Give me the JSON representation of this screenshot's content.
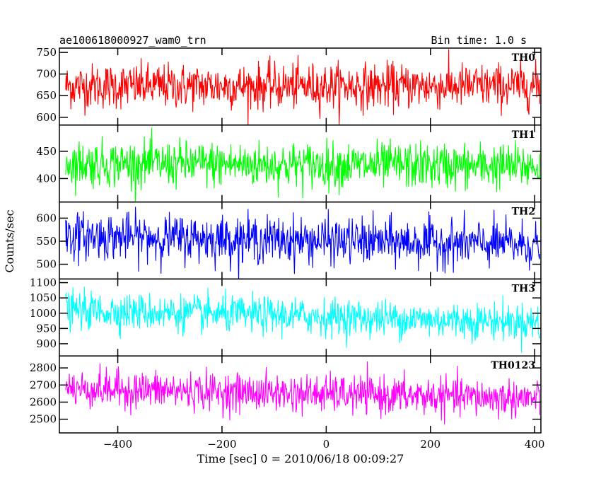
{
  "chart_data": {
    "type": "line",
    "title_left": "ae100618000927_wam0_trn",
    "title_right": "Bin time: 1.0 s",
    "xlabel": "Time [sec] 0 = 2010/06/18 00:09:27",
    "ylabel": "Counts/sec",
    "xlim": [
      -512,
      412
    ],
    "x_ticks": [
      -400,
      -200,
      0,
      200,
      400
    ],
    "x_tick_labels": [
      "−400",
      "−200",
      "0",
      "200",
      "400"
    ],
    "x_range": [
      -500,
      410
    ],
    "bin_time": 1.0,
    "grid": false,
    "panels": [
      {
        "name": "TH0",
        "color": "#ff0000",
        "ylim": [
          582,
          760
        ],
        "y_ticks": [
          600,
          650,
          700,
          750
        ],
        "y_tick_labels": [
          "600",
          "650",
          "700",
          "750"
        ],
        "mean_start": 672,
        "mean_end": 672,
        "noise": 26
      },
      {
        "name": "TH1",
        "color": "#00ff00",
        "ylim": [
          357,
          498
        ],
        "y_ticks": [
          400,
          450
        ],
        "y_tick_labels": [
          "400",
          "450"
        ],
        "mean_start": 428,
        "mean_end": 422,
        "noise": 21
      },
      {
        "name": "TH2",
        "color": "#0000ff",
        "ylim": [
          468,
          635
        ],
        "y_ticks": [
          500,
          550,
          600
        ],
        "y_tick_labels": [
          "500",
          "550",
          "600"
        ],
        "mean_start": 562,
        "mean_end": 542,
        "noise": 25
      },
      {
        "name": "TH3",
        "color": "#00ffff",
        "ylim": [
          860,
          1112
        ],
        "y_ticks": [
          900,
          950,
          1000,
          1050,
          1100
        ],
        "y_tick_labels": [
          "900",
          "950",
          "1000",
          "1050",
          "1100"
        ],
        "mean_start": 1010,
        "mean_end": 970,
        "noise": 30
      },
      {
        "name": "TH0123",
        "color": "#ff00ff",
        "ylim": [
          2420,
          2870
        ],
        "y_ticks": [
          2500,
          2600,
          2700,
          2800
        ],
        "y_tick_labels": [
          "2500",
          "2600",
          "2700",
          "2800"
        ],
        "mean_start": 2680,
        "mean_end": 2620,
        "noise": 55
      }
    ]
  }
}
